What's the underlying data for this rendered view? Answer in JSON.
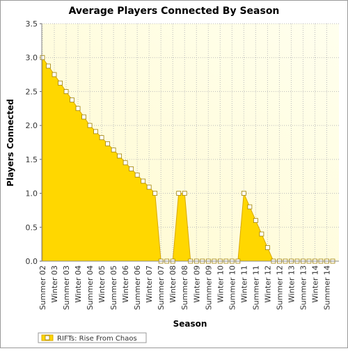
{
  "chart_data": {
    "type": "area",
    "title": "Average Players Connected By Season",
    "x_label": "Season",
    "y_label": "Players Connected",
    "categories": [
      "Summer 02",
      null,
      "Winter 03",
      null,
      "Summer 03",
      null,
      "Winter 04",
      null,
      "Summer 04",
      null,
      "Winter 05",
      null,
      "Summer 05",
      null,
      "Winter 06",
      null,
      "Summer 06",
      null,
      "Winter 07",
      null,
      "Summer 07",
      null,
      "Winter 08",
      null,
      "Summer 08",
      null,
      "Winter 09",
      null,
      "Summer 09",
      null,
      "Winter 10",
      null,
      "Summer 10",
      null,
      "Winter 11",
      null,
      "Summer 11",
      null,
      "Winter 12",
      null,
      "Summer 12",
      null,
      "Winter 13",
      null,
      "Summer 13",
      null,
      "Winter 14",
      null,
      "Summer 14",
      null
    ],
    "series": [
      {
        "name": "RIFTs: Rise From Chaos",
        "color": "#ffd700",
        "values": [
          3.0,
          2.875,
          2.75,
          2.625,
          2.5,
          2.375,
          2.25,
          2.125,
          2.0,
          1.91,
          1.82,
          1.73,
          1.64,
          1.55,
          1.45,
          1.36,
          1.27,
          1.18,
          1.09,
          1.0,
          0,
          0,
          0,
          1.0,
          1.0,
          0,
          0,
          0,
          0,
          0,
          0,
          0,
          0,
          0,
          1.0,
          0.8,
          0.6,
          0.4,
          0.2,
          0,
          0,
          0,
          0,
          0,
          0,
          0,
          0,
          0,
          0,
          0
        ]
      }
    ],
    "ylim": [
      0,
      3.5
    ],
    "yticks": [
      {
        "value": 0,
        "label": "0.0"
      },
      {
        "value": 0.5,
        "label": "0.5"
      },
      {
        "value": 1,
        "label": "1.0"
      },
      {
        "value": 1.5,
        "label": "1.5"
      },
      {
        "value": 2,
        "label": "2.0"
      },
      {
        "value": 2.5,
        "label": "2.5"
      },
      {
        "value": 3,
        "label": "3.0"
      },
      {
        "value": 3.5,
        "label": "3.5"
      }
    ],
    "grid": true,
    "legend": "bottom-left"
  }
}
